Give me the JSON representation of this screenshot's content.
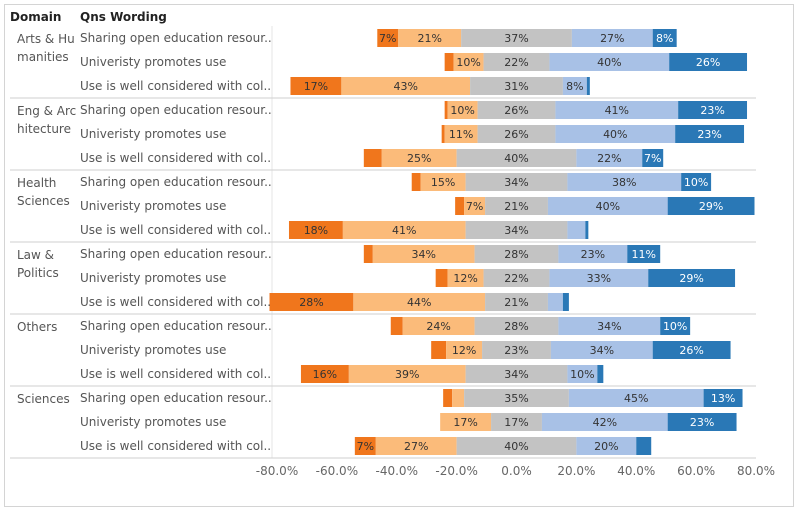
{
  "header": {
    "domain_label": "Domain",
    "question_label": "Qns Wording"
  },
  "colors": {
    "strongly_disagree": "#f0761c",
    "disagree": "#fbbb7a",
    "neutral": "#c3c3c3",
    "agree": "#a8c1e6",
    "strongly_agree": "#2a78b6",
    "label_dark": "#333333",
    "label_light": "#ffffff"
  },
  "chart_data": {
    "type": "bar",
    "orientation": "horizontal-diverging-stacked",
    "xlim": [
      -80,
      80
    ],
    "x_ticks": [
      "-80.0%",
      "-60.0%",
      "-40.0%",
      "-20.0%",
      "0.0%",
      "20.0%",
      "40.0%",
      "60.0%",
      "80.0%"
    ],
    "segment_order": [
      "strongly_disagree",
      "disagree",
      "neutral",
      "agree",
      "strongly_agree"
    ],
    "groups": [
      {
        "domain": "Arts & Hu manities",
        "rows": [
          {
            "question": "Sharing open education resour..",
            "strongly_disagree": 7,
            "disagree": 21,
            "neutral": 37,
            "agree": 27,
            "strongly_agree": 8,
            "labels": [
              "7%",
              "21%",
              "37%",
              "27%",
              "8%"
            ]
          },
          {
            "question": "Univeristy promotes use",
            "strongly_disagree": 3,
            "disagree": 10,
            "neutral": 22,
            "agree": 40,
            "strongly_agree": 26,
            "labels": [
              "",
              "10%",
              "22%",
              "40%",
              "26%"
            ]
          },
          {
            "question": "Use is well considered with col..",
            "strongly_disagree": 17,
            "disagree": 43,
            "neutral": 31,
            "agree": 8,
            "strongly_agree": 1,
            "labels": [
              "17%",
              "43%",
              "31%",
              "8%",
              ""
            ]
          }
        ]
      },
      {
        "domain": "Eng & Arc hitecture",
        "rows": [
          {
            "question": "Sharing open education resour..",
            "strongly_disagree": 1,
            "disagree": 10,
            "neutral": 26,
            "agree": 41,
            "strongly_agree": 23,
            "labels": [
              "",
              "10%",
              "26%",
              "41%",
              "23%"
            ]
          },
          {
            "question": "Univeristy promotes use",
            "strongly_disagree": 1,
            "disagree": 11,
            "neutral": 26,
            "agree": 40,
            "strongly_agree": 23,
            "labels": [
              "",
              "11%",
              "26%",
              "40%",
              "23%"
            ]
          },
          {
            "question": "Use is well considered with col..",
            "strongly_disagree": 6,
            "disagree": 25,
            "neutral": 40,
            "agree": 22,
            "strongly_agree": 7,
            "labels": [
              "",
              "25%",
              "40%",
              "22%",
              "7%"
            ]
          }
        ]
      },
      {
        "domain": "Health Sciences",
        "rows": [
          {
            "question": "Sharing open education resour..",
            "strongly_disagree": 3,
            "disagree": 15,
            "neutral": 34,
            "agree": 38,
            "strongly_agree": 10,
            "labels": [
              "",
              "15%",
              "34%",
              "38%",
              "10%"
            ]
          },
          {
            "question": "Univeristy promotes use",
            "strongly_disagree": 3,
            "disagree": 7,
            "neutral": 21,
            "agree": 40,
            "strongly_agree": 29,
            "labels": [
              "",
              "7%",
              "21%",
              "40%",
              "29%"
            ]
          },
          {
            "question": "Use is well considered with col..",
            "strongly_disagree": 18,
            "disagree": 41,
            "neutral": 34,
            "agree": 6,
            "strongly_agree": 1,
            "labels": [
              "18%",
              "41%",
              "34%",
              "",
              ""
            ]
          }
        ]
      },
      {
        "domain": "Law & Politics",
        "rows": [
          {
            "question": "Sharing open education resour..",
            "strongly_disagree": 3,
            "disagree": 34,
            "neutral": 28,
            "agree": 23,
            "strongly_agree": 11,
            "labels": [
              "",
              "34%",
              "28%",
              "23%",
              "11%"
            ]
          },
          {
            "question": "Univeristy promotes use",
            "strongly_disagree": 4,
            "disagree": 12,
            "neutral": 22,
            "agree": 33,
            "strongly_agree": 29,
            "labels": [
              "",
              "12%",
              "22%",
              "33%",
              "29%"
            ]
          },
          {
            "question": "Use is well considered with col..",
            "strongly_disagree": 28,
            "disagree": 44,
            "neutral": 21,
            "agree": 5,
            "strongly_agree": 2,
            "labels": [
              "28%",
              "44%",
              "21%",
              "",
              ""
            ]
          }
        ]
      },
      {
        "domain": "Others",
        "rows": [
          {
            "question": "Sharing open education resour..",
            "strongly_disagree": 4,
            "disagree": 24,
            "neutral": 28,
            "agree": 34,
            "strongly_agree": 10,
            "labels": [
              "",
              "24%",
              "28%",
              "34%",
              "10%"
            ]
          },
          {
            "question": "Univeristy promotes use",
            "strongly_disagree": 5,
            "disagree": 12,
            "neutral": 23,
            "agree": 34,
            "strongly_agree": 26,
            "labels": [
              "",
              "12%",
              "23%",
              "34%",
              "26%"
            ]
          },
          {
            "question": "Use is well considered with col..",
            "strongly_disagree": 16,
            "disagree": 39,
            "neutral": 34,
            "agree": 10,
            "strongly_agree": 2,
            "labels": [
              "16%",
              "39%",
              "34%",
              "10%",
              ""
            ]
          }
        ]
      },
      {
        "domain": "Sciences",
        "rows": [
          {
            "question": "Sharing open education resour..",
            "strongly_disagree": 3,
            "disagree": 4,
            "neutral": 35,
            "agree": 45,
            "strongly_agree": 13,
            "labels": [
              "",
              "",
              "35%",
              "45%",
              "13%"
            ]
          },
          {
            "question": "Univeristy promotes use",
            "strongly_disagree": 0,
            "disagree": 17,
            "neutral": 17,
            "agree": 42,
            "strongly_agree": 23,
            "labels": [
              "",
              "17%",
              "17%",
              "42%",
              "23%"
            ]
          },
          {
            "question": "Use is well considered with col..",
            "strongly_disagree": 7,
            "disagree": 27,
            "neutral": 40,
            "agree": 20,
            "strongly_agree": 5,
            "labels": [
              "7%",
              "27%",
              "40%",
              "20%",
              ""
            ]
          }
        ]
      }
    ]
  }
}
